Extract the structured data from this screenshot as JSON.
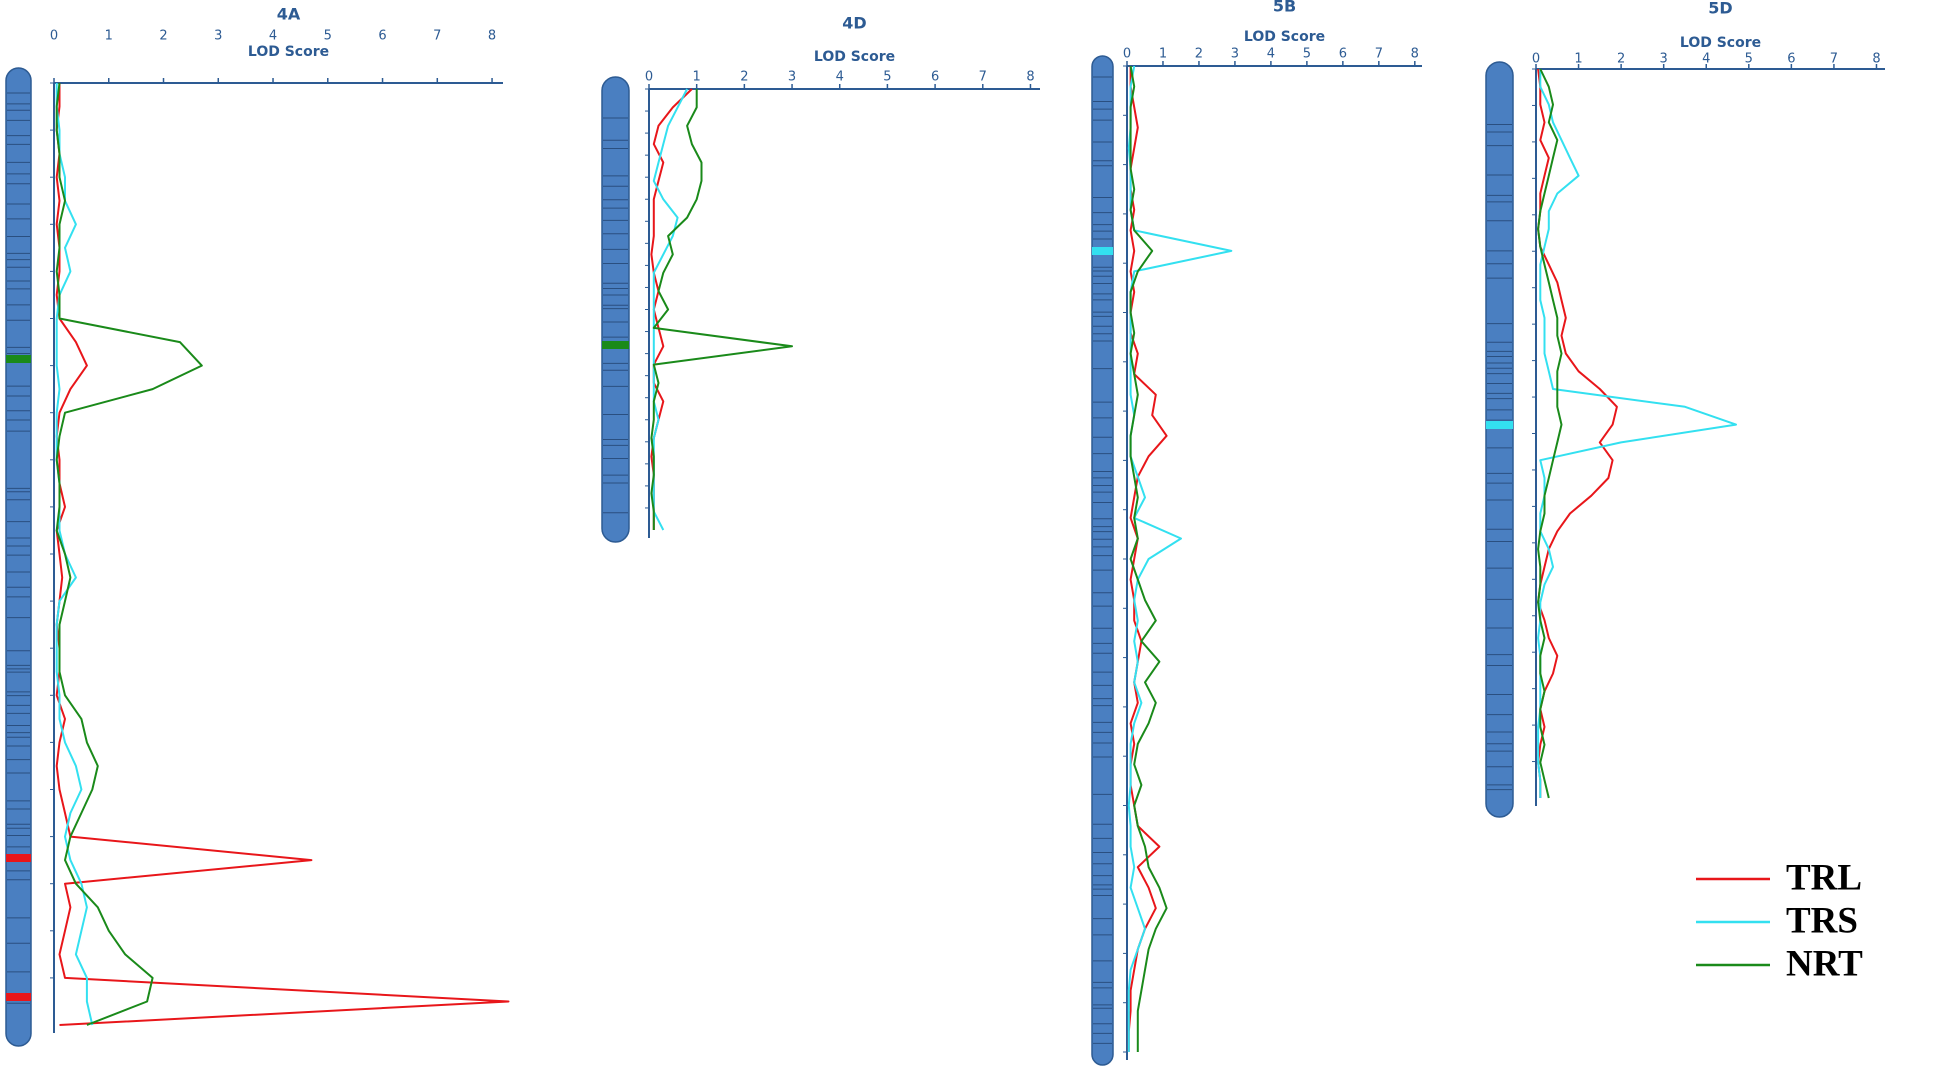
{
  "chart_data": [
    {
      "type": "line",
      "title": "4A",
      "xlabel": "LOD Score",
      "xlim": [
        0,
        8.2
      ],
      "xticks": [
        0,
        1,
        2,
        3,
        4,
        5,
        6,
        7,
        8
      ],
      "series": [
        {
          "name": "TRL",
          "color": "#e8161a",
          "values": [
            0.1,
            0.1,
            0.05,
            0.1,
            0.05,
            0.1,
            0.05,
            0.1,
            0.1,
            0.05,
            0.1,
            0.4,
            0.6,
            0.3,
            0.1,
            0.05,
            0.1,
            0.1,
            0.2,
            0.05,
            0.1,
            0.15,
            0.1,
            0.05,
            0.1,
            0.1,
            0.05,
            0.2,
            0.1,
            0.05,
            0.1,
            0.2,
            0.3,
            4.7,
            0.2,
            0.3,
            0.2,
            0.1,
            0.2,
            8.3,
            0.1
          ]
        },
        {
          "name": "TRS",
          "color": "#33e0f0",
          "values": [
            0.05,
            0.05,
            0.1,
            0.1,
            0.2,
            0.2,
            0.4,
            0.2,
            0.3,
            0.1,
            0.05,
            0.05,
            0.05,
            0.1,
            0.05,
            0.05,
            0.05,
            0.1,
            0.1,
            0.1,
            0.2,
            0.4,
            0.1,
            0.05,
            0.05,
            0.05,
            0.1,
            0.1,
            0.2,
            0.4,
            0.5,
            0.3,
            0.2,
            0.3,
            0.5,
            0.6,
            0.5,
            0.4,
            0.6,
            0.6,
            0.7
          ]
        },
        {
          "name": "NRT",
          "color": "#1a8a1a",
          "values": [
            0.1,
            0.05,
            0.05,
            0.1,
            0.1,
            0.2,
            0.1,
            0.1,
            0.05,
            0.1,
            0.1,
            2.3,
            2.7,
            1.8,
            0.2,
            0.1,
            0.05,
            0.1,
            0.1,
            0.05,
            0.2,
            0.3,
            0.2,
            0.1,
            0.1,
            0.1,
            0.2,
            0.5,
            0.6,
            0.8,
            0.7,
            0.5,
            0.3,
            0.2,
            0.4,
            0.8,
            1.0,
            1.3,
            1.8,
            1.7,
            0.6
          ]
        }
      ]
    },
    {
      "type": "line",
      "title": "4D",
      "xlabel": "LOD Score",
      "xlim": [
        0,
        8.2
      ],
      "xticks": [
        0,
        1,
        2,
        3,
        4,
        5,
        6,
        7,
        8
      ],
      "series": [
        {
          "name": "TRL",
          "color": "#e8161a",
          "values": [
            0.9,
            0.5,
            0.2,
            0.1,
            0.3,
            0.2,
            0.1,
            0.1,
            0.1,
            0.05,
            0.1,
            0.2,
            0.1,
            0.2,
            0.3,
            0.1,
            0.1,
            0.3,
            0.2,
            0.1,
            0.05,
            0.1,
            0.1,
            0.1,
            0.1
          ]
        },
        {
          "name": "TRS",
          "color": "#33e0f0",
          "values": [
            0.8,
            0.6,
            0.4,
            0.3,
            0.2,
            0.1,
            0.3,
            0.6,
            0.5,
            0.3,
            0.1,
            0.1,
            0.1,
            0.1,
            0.1,
            0.1,
            0.1,
            0.1,
            0.2,
            0.1,
            0.1,
            0.1,
            0.1,
            0.1,
            0.3
          ]
        },
        {
          "name": "NRT",
          "color": "#1a8a1a",
          "values": [
            1.0,
            1.0,
            0.8,
            0.9,
            1.1,
            1.1,
            1.0,
            0.8,
            0.4,
            0.5,
            0.3,
            0.2,
            0.4,
            0.1,
            3.0,
            0.1,
            0.2,
            0.1,
            0.1,
            0.05,
            0.1,
            0.1,
            0.05,
            0.1,
            0.1
          ]
        }
      ]
    },
    {
      "type": "line",
      "title": "5B",
      "xlabel": "LOD Score",
      "xlim": [
        0,
        8.2
      ],
      "xticks": [
        0,
        1,
        2,
        3,
        4,
        5,
        6,
        7,
        8
      ],
      "series": [
        {
          "name": "TRL",
          "color": "#e8161a",
          "values": [
            0.1,
            0.1,
            0.2,
            0.3,
            0.2,
            0.1,
            0.1,
            0.2,
            0.1,
            0.2,
            0.1,
            0.2,
            0.1,
            0.1,
            0.3,
            0.2,
            0.8,
            0.7,
            1.1,
            0.6,
            0.3,
            0.2,
            0.1,
            0.3,
            0.2,
            0.1,
            0.2,
            0.2,
            0.4,
            0.3,
            0.2,
            0.3,
            0.1,
            0.2,
            0.1,
            0.1,
            0.2,
            0.3,
            0.9,
            0.3,
            0.6,
            0.8,
            0.5,
            0.3,
            0.2,
            0.1,
            0.1,
            0.05,
            0.05
          ]
        },
        {
          "name": "TRS",
          "color": "#33e0f0",
          "values": [
            0.2,
            0.1,
            0.1,
            0.1,
            0.05,
            0.1,
            0.1,
            0.1,
            0.2,
            2.9,
            0.2,
            0.1,
            0.1,
            0.1,
            0.1,
            0.1,
            0.1,
            0.2,
            0.1,
            0.1,
            0.3,
            0.5,
            0.2,
            1.5,
            0.6,
            0.3,
            0.2,
            0.3,
            0.2,
            0.3,
            0.2,
            0.4,
            0.2,
            0.1,
            0.1,
            0.1,
            0.05,
            0.1,
            0.1,
            0.2,
            0.1,
            0.3,
            0.5,
            0.3,
            0.1,
            0.05,
            0.05,
            0.05,
            0.05
          ]
        },
        {
          "name": "NRT",
          "color": "#1a8a1a",
          "values": [
            0.1,
            0.2,
            0.1,
            0.1,
            0.1,
            0.1,
            0.2,
            0.1,
            0.2,
            0.7,
            0.3,
            0.1,
            0.1,
            0.2,
            0.1,
            0.2,
            0.3,
            0.2,
            0.1,
            0.1,
            0.2,
            0.3,
            0.2,
            0.3,
            0.1,
            0.3,
            0.5,
            0.8,
            0.4,
            0.9,
            0.5,
            0.8,
            0.6,
            0.3,
            0.2,
            0.4,
            0.2,
            0.3,
            0.5,
            0.6,
            0.9,
            1.1,
            0.8,
            0.6,
            0.5,
            0.4,
            0.3,
            0.3,
            0.3
          ]
        }
      ]
    },
    {
      "type": "line",
      "title": "5D",
      "xlabel": "LOD Score",
      "xlim": [
        0,
        8.2
      ],
      "xticks": [
        0,
        1,
        2,
        3,
        4,
        5,
        6,
        7,
        8
      ],
      "series": [
        {
          "name": "TRL",
          "color": "#e8161a",
          "values": [
            0.05,
            0.1,
            0.1,
            0.2,
            0.1,
            0.3,
            0.2,
            0.1,
            0.1,
            0.05,
            0.1,
            0.3,
            0.5,
            0.6,
            0.7,
            0.6,
            0.7,
            1.0,
            1.5,
            1.9,
            1.8,
            1.5,
            1.8,
            1.7,
            1.3,
            0.8,
            0.5,
            0.3,
            0.2,
            0.1,
            0.05,
            0.2,
            0.3,
            0.5,
            0.4,
            0.2,
            0.1,
            0.2,
            0.1,
            0.05,
            0.1,
            0.1
          ]
        },
        {
          "name": "TRS",
          "color": "#33e0f0",
          "values": [
            0.1,
            0.1,
            0.3,
            0.4,
            0.6,
            0.8,
            1.0,
            0.5,
            0.3,
            0.3,
            0.2,
            0.1,
            0.1,
            0.1,
            0.2,
            0.2,
            0.2,
            0.3,
            0.4,
            3.5,
            4.7,
            2.0,
            0.1,
            0.2,
            0.2,
            0.1,
            0.1,
            0.3,
            0.4,
            0.2,
            0.1,
            0.1,
            0.05,
            0.1,
            0.1,
            0.1,
            0.1,
            0.05,
            0.05,
            0.05,
            0.1,
            0.1
          ]
        },
        {
          "name": "NRT",
          "color": "#1a8a1a",
          "values": [
            0.1,
            0.3,
            0.4,
            0.3,
            0.5,
            0.4,
            0.3,
            0.2,
            0.1,
            0.05,
            0.1,
            0.2,
            0.3,
            0.4,
            0.5,
            0.5,
            0.6,
            0.5,
            0.5,
            0.5,
            0.6,
            0.5,
            0.4,
            0.3,
            0.2,
            0.2,
            0.1,
            0.05,
            0.1,
            0.1,
            0.05,
            0.1,
            0.2,
            0.1,
            0.1,
            0.2,
            0.1,
            0.1,
            0.2,
            0.1,
            0.2,
            0.3
          ]
        }
      ]
    }
  ]
}
